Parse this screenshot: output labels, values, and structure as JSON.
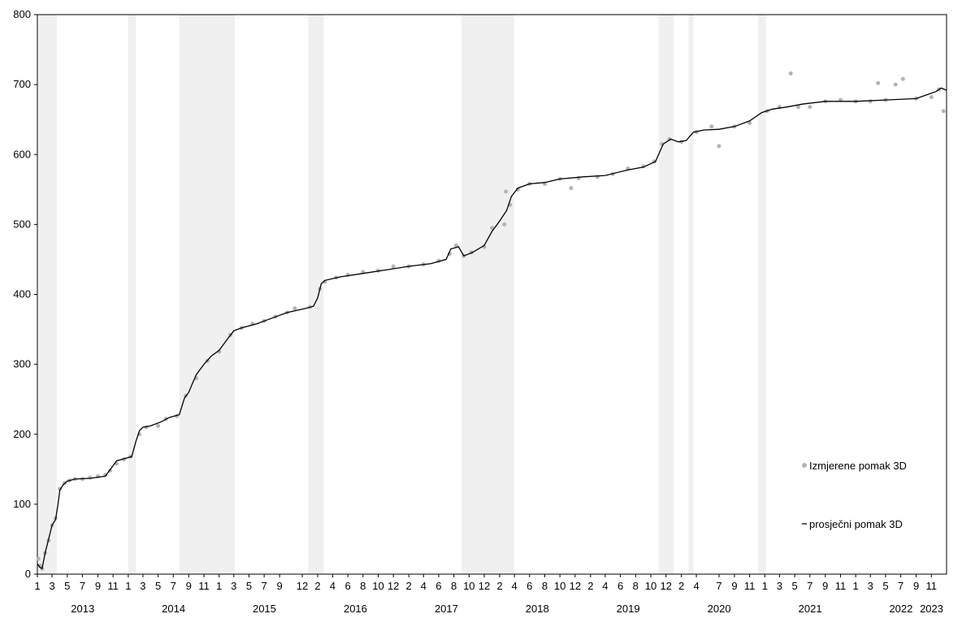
{
  "chart_data": {
    "type": "line",
    "title": "",
    "xlabel": "",
    "ylabel": "",
    "ylim": [
      0,
      800
    ],
    "y_ticks": [
      0,
      100,
      200,
      300,
      400,
      500,
      600,
      700,
      800
    ],
    "xlim": [
      "2013-01-01",
      "2023-01-01"
    ],
    "x_year_labels": [
      "2013",
      "2014",
      "2015",
      "2016",
      "2017",
      "2018",
      "2019",
      "2020",
      "2021",
      "2022",
      "2023"
    ],
    "x_month_ticks": [
      {
        "label": "1",
        "x": "2013-01-01"
      },
      {
        "label": "3",
        "x": "2013-03-01"
      },
      {
        "label": "5",
        "x": "2013-05-01"
      },
      {
        "label": "7",
        "x": "2013-07-01"
      },
      {
        "label": "9",
        "x": "2013-09-01"
      },
      {
        "label": "11",
        "x": "2013-11-01"
      },
      {
        "label": "1",
        "x": "2014-01-01"
      },
      {
        "label": "3",
        "x": "2014-03-01"
      },
      {
        "label": "5",
        "x": "2014-05-01"
      },
      {
        "label": "7",
        "x": "2014-07-01"
      },
      {
        "label": "9",
        "x": "2014-09-01"
      },
      {
        "label": "11",
        "x": "2014-11-01"
      },
      {
        "label": "1",
        "x": "2015-01-01"
      },
      {
        "label": "3",
        "x": "2015-03-01"
      },
      {
        "label": "5",
        "x": "2015-05-01"
      },
      {
        "label": "7",
        "x": "2015-07-01"
      },
      {
        "label": "9",
        "x": "2015-09-01"
      },
      {
        "label": "12",
        "x": "2015-12-01"
      },
      {
        "label": "2",
        "x": "2016-02-01"
      },
      {
        "label": "4",
        "x": "2016-04-01"
      },
      {
        "label": "6",
        "x": "2016-06-01"
      },
      {
        "label": "8",
        "x": "2016-08-01"
      },
      {
        "label": "10",
        "x": "2016-10-01"
      },
      {
        "label": "12",
        "x": "2016-12-01"
      },
      {
        "label": "2",
        "x": "2017-02-01"
      },
      {
        "label": "4",
        "x": "2017-04-01"
      },
      {
        "label": "6",
        "x": "2017-06-01"
      },
      {
        "label": "8",
        "x": "2017-08-01"
      },
      {
        "label": "10",
        "x": "2017-10-01"
      },
      {
        "label": "12",
        "x": "2017-12-01"
      },
      {
        "label": "2",
        "x": "2018-02-01"
      },
      {
        "label": "4",
        "x": "2018-04-01"
      },
      {
        "label": "6",
        "x": "2018-06-01"
      },
      {
        "label": "8",
        "x": "2018-08-01"
      },
      {
        "label": "10",
        "x": "2018-10-01"
      },
      {
        "label": "12",
        "x": "2018-12-01"
      },
      {
        "label": "2",
        "x": "2019-02-01"
      },
      {
        "label": "4",
        "x": "2019-04-01"
      },
      {
        "label": "6",
        "x": "2019-06-01"
      },
      {
        "label": "8",
        "x": "2019-08-01"
      },
      {
        "label": "10",
        "x": "2019-10-01"
      },
      {
        "label": "12",
        "x": "2019-12-01"
      },
      {
        "label": "2",
        "x": "2020-02-01"
      },
      {
        "label": "4",
        "x": "2020-04-01"
      },
      {
        "label": "7",
        "x": "2020-07-01"
      },
      {
        "label": "9",
        "x": "2020-09-01"
      },
      {
        "label": "11",
        "x": "2020-11-01"
      },
      {
        "label": "1",
        "x": "2021-01-01"
      },
      {
        "label": "3",
        "x": "2021-03-01"
      },
      {
        "label": "5",
        "x": "2021-05-01"
      },
      {
        "label": "7",
        "x": "2021-07-01"
      },
      {
        "label": "9",
        "x": "2021-09-01"
      },
      {
        "label": "11",
        "x": "2021-11-01"
      },
      {
        "label": "1",
        "x": "2022-01-01"
      },
      {
        "label": "3",
        "x": "2022-03-01"
      },
      {
        "label": "5",
        "x": "2022-05-01"
      },
      {
        "label": "7",
        "x": "2022-07-01"
      },
      {
        "label": "9",
        "x": "2022-09-01"
      },
      {
        "label": "11",
        "x": "2022-11-01"
      }
    ],
    "shaded_periods": [
      [
        "2013-01-05",
        "2013-03-20"
      ],
      [
        "2014-01-01",
        "2014-02-01"
      ],
      [
        "2014-07-25",
        "2015-03-05"
      ],
      [
        "2015-12-25",
        "2016-02-25"
      ],
      [
        "2017-09-01",
        "2018-04-01"
      ],
      [
        "2019-11-01",
        "2020-01-01"
      ],
      [
        "2020-03-01",
        "2020-03-20"
      ],
      [
        "2020-12-05",
        "2021-01-05"
      ]
    ],
    "shade_color": "#f0f0f0",
    "legend_position": "bottom-right",
    "series": [
      {
        "name": "Izmjerene pomak 3D",
        "type": "scatter",
        "color": "#b3b3b3",
        "points": [
          [
            "2013-01-05",
            22
          ],
          [
            "2013-01-12",
            12
          ],
          [
            "2013-01-20",
            8
          ],
          [
            "2013-02-01",
            30
          ],
          [
            "2013-02-15",
            48
          ],
          [
            "2013-03-01",
            70
          ],
          [
            "2013-03-15",
            80
          ],
          [
            "2013-04-01",
            122
          ],
          [
            "2013-04-20",
            130
          ],
          [
            "2013-05-10",
            134
          ],
          [
            "2013-06-01",
            136
          ],
          [
            "2013-07-01",
            136
          ],
          [
            "2013-08-01",
            138
          ],
          [
            "2013-09-01",
            140
          ],
          [
            "2013-10-01",
            142
          ],
          [
            "2013-10-20",
            148
          ],
          [
            "2013-11-15",
            158
          ],
          [
            "2013-12-15",
            164
          ],
          [
            "2014-01-10",
            168
          ],
          [
            "2014-02-15",
            200
          ],
          [
            "2014-03-15",
            210
          ],
          [
            "2014-05-01",
            212
          ],
          [
            "2014-06-01",
            222
          ],
          [
            "2014-07-15",
            226
          ],
          [
            "2014-08-20",
            255
          ],
          [
            "2014-10-01",
            280
          ],
          [
            "2014-11-15",
            305
          ],
          [
            "2015-01-01",
            318
          ],
          [
            "2015-02-15",
            342
          ],
          [
            "2015-04-01",
            352
          ],
          [
            "2015-05-15",
            358
          ],
          [
            "2015-07-01",
            362
          ],
          [
            "2015-08-15",
            368
          ],
          [
            "2015-10-01",
            374
          ],
          [
            "2015-11-01",
            380
          ],
          [
            "2016-01-01",
            382
          ],
          [
            "2016-02-10",
            408
          ],
          [
            "2016-03-01",
            418
          ],
          [
            "2016-04-15",
            424
          ],
          [
            "2016-06-01",
            428
          ],
          [
            "2016-08-01",
            432
          ],
          [
            "2016-10-01",
            434
          ],
          [
            "2016-12-01",
            440
          ],
          [
            "2017-02-01",
            440
          ],
          [
            "2017-04-01",
            443
          ],
          [
            "2017-06-01",
            448
          ],
          [
            "2017-07-15",
            458
          ],
          [
            "2017-08-10",
            470
          ],
          [
            "2017-09-10",
            455
          ],
          [
            "2017-10-10",
            460
          ],
          [
            "2017-12-01",
            468
          ],
          [
            "2018-01-01",
            495
          ],
          [
            "2018-02-20",
            500
          ],
          [
            "2018-02-26",
            547
          ],
          [
            "2018-03-15",
            528
          ],
          [
            "2018-04-15",
            550
          ],
          [
            "2018-06-01",
            558
          ],
          [
            "2018-08-01",
            558
          ],
          [
            "2018-10-01",
            565
          ],
          [
            "2018-11-15",
            552
          ],
          [
            "2018-12-15",
            566
          ],
          [
            "2019-03-01",
            568
          ],
          [
            "2019-05-01",
            572
          ],
          [
            "2019-07-01",
            580
          ],
          [
            "2019-09-01",
            583
          ],
          [
            "2019-10-15",
            590
          ],
          [
            "2019-11-15",
            615
          ],
          [
            "2019-12-15",
            622
          ],
          [
            "2020-02-01",
            618
          ],
          [
            "2020-04-01",
            632
          ],
          [
            "2020-06-01",
            640
          ],
          [
            "2020-07-01",
            612
          ],
          [
            "2020-09-01",
            640
          ],
          [
            "2020-11-01",
            645
          ],
          [
            "2021-01-10",
            662
          ],
          [
            "2021-03-01",
            668
          ],
          [
            "2021-04-15",
            716
          ],
          [
            "2021-05-15",
            668
          ],
          [
            "2021-07-01",
            668
          ],
          [
            "2021-09-01",
            676
          ],
          [
            "2021-11-01",
            678
          ],
          [
            "2022-01-01",
            676
          ],
          [
            "2022-03-01",
            676
          ],
          [
            "2022-04-01",
            702
          ],
          [
            "2022-05-01",
            678
          ],
          [
            "2022-06-10",
            700
          ],
          [
            "2022-07-10",
            708
          ],
          [
            "2022-09-01",
            680
          ],
          [
            "2022-11-01",
            682
          ],
          [
            "2022-12-01",
            693
          ],
          [
            "2022-12-20",
            662
          ]
        ]
      },
      {
        "name": "prosječni pomak 3D",
        "type": "line",
        "color": "#000000",
        "points": [
          [
            "2013-01-01",
            15
          ],
          [
            "2013-01-10",
            10
          ],
          [
            "2013-01-20",
            8
          ],
          [
            "2013-02-01",
            30
          ],
          [
            "2013-02-15",
            50
          ],
          [
            "2013-03-01",
            70
          ],
          [
            "2013-03-15",
            78
          ],
          [
            "2013-03-25",
            100
          ],
          [
            "2013-04-01",
            120
          ],
          [
            "2013-04-15",
            128
          ],
          [
            "2013-05-01",
            133
          ],
          [
            "2013-06-01",
            136
          ],
          [
            "2013-08-01",
            137
          ],
          [
            "2013-10-01",
            140
          ],
          [
            "2013-11-01",
            155
          ],
          [
            "2013-11-15",
            162
          ],
          [
            "2013-12-15",
            165
          ],
          [
            "2014-01-15",
            168
          ],
          [
            "2014-02-01",
            190
          ],
          [
            "2014-02-15",
            205
          ],
          [
            "2014-03-01",
            210
          ],
          [
            "2014-04-01",
            212
          ],
          [
            "2014-05-15",
            218
          ],
          [
            "2014-06-15",
            224
          ],
          [
            "2014-07-25",
            228
          ],
          [
            "2014-08-15",
            252
          ],
          [
            "2014-09-01",
            260
          ],
          [
            "2014-09-15",
            272
          ],
          [
            "2014-10-01",
            285
          ],
          [
            "2014-11-01",
            300
          ],
          [
            "2014-12-01",
            312
          ],
          [
            "2015-01-01",
            320
          ],
          [
            "2015-02-01",
            335
          ],
          [
            "2015-03-01",
            348
          ],
          [
            "2015-04-01",
            352
          ],
          [
            "2015-06-01",
            358
          ],
          [
            "2015-08-01",
            366
          ],
          [
            "2015-10-01",
            374
          ],
          [
            "2015-12-15",
            380
          ],
          [
            "2016-01-15",
            383
          ],
          [
            "2016-02-01",
            395
          ],
          [
            "2016-02-15",
            415
          ],
          [
            "2016-03-01",
            420
          ],
          [
            "2016-05-01",
            425
          ],
          [
            "2016-08-01",
            430
          ],
          [
            "2016-11-01",
            435
          ],
          [
            "2017-02-01",
            440
          ],
          [
            "2017-05-01",
            444
          ],
          [
            "2017-07-01",
            450
          ],
          [
            "2017-07-20",
            465
          ],
          [
            "2017-08-20",
            468
          ],
          [
            "2017-09-10",
            455
          ],
          [
            "2017-10-15",
            460
          ],
          [
            "2017-12-01",
            470
          ],
          [
            "2018-01-01",
            490
          ],
          [
            "2018-02-01",
            505
          ],
          [
            "2018-03-01",
            520
          ],
          [
            "2018-03-20",
            540
          ],
          [
            "2018-04-15",
            552
          ],
          [
            "2018-06-01",
            558
          ],
          [
            "2018-08-01",
            560
          ],
          [
            "2018-10-01",
            565
          ],
          [
            "2019-01-01",
            568
          ],
          [
            "2019-04-01",
            570
          ],
          [
            "2019-07-01",
            578
          ],
          [
            "2019-09-01",
            582
          ],
          [
            "2019-10-20",
            590
          ],
          [
            "2019-11-20",
            615
          ],
          [
            "2019-12-20",
            622
          ],
          [
            "2020-01-20",
            618
          ],
          [
            "2020-02-20",
            620
          ],
          [
            "2020-03-20",
            632
          ],
          [
            "2020-05-01",
            635
          ],
          [
            "2020-07-01",
            636
          ],
          [
            "2020-09-01",
            640
          ],
          [
            "2020-11-01",
            648
          ],
          [
            "2020-12-20",
            660
          ],
          [
            "2021-02-01",
            665
          ],
          [
            "2021-04-01",
            668
          ],
          [
            "2021-06-01",
            672
          ],
          [
            "2021-09-01",
            676
          ],
          [
            "2022-01-01",
            676
          ],
          [
            "2022-05-01",
            678
          ],
          [
            "2022-09-01",
            680
          ],
          [
            "2022-11-20",
            690
          ],
          [
            "2022-12-10",
            695
          ],
          [
            "2022-12-31",
            692
          ]
        ]
      }
    ]
  }
}
